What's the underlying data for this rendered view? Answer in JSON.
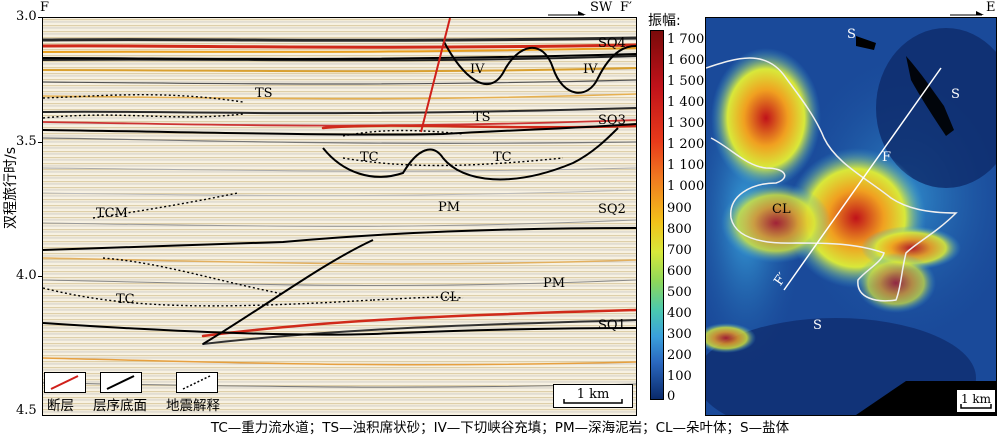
{
  "left_panel": {
    "corner_left": "F",
    "corner_right": "F′",
    "direction": "SW",
    "y_axis_label": "双程旅行时/s",
    "y_ticks": [
      "3.0",
      "3.5",
      "4.0",
      "4.5"
    ],
    "labels": {
      "sq4": "SQ4",
      "sq3": "SQ3",
      "sq2": "SQ2",
      "sq1": "SQ1",
      "iv1": "IV",
      "iv2": "IV",
      "ts1": "TS",
      "ts2": "TS",
      "tc1": "TC",
      "tc2": "TC",
      "tc3": "TC",
      "tcm": "TCM",
      "pm1": "PM",
      "pm2": "PM",
      "cl": "CL"
    },
    "legend": {
      "fault": "断层",
      "sequence_base": "层序底面",
      "seismic_interp": "地震解释"
    },
    "scale_bar": "1 km"
  },
  "colorbar": {
    "title": "振幅:",
    "ticks": [
      "1 700",
      "1 600",
      "1 500",
      "1 400",
      "1 300",
      "1 200",
      "1 100",
      "1 000",
      "900",
      "800",
      "700",
      "600",
      "500",
      "400",
      "300",
      "200",
      "100",
      "0"
    ]
  },
  "right_panel": {
    "direction": "E",
    "labels": {
      "s1": "S",
      "s2": "S",
      "s3": "S",
      "cl": "CL",
      "f1": "F",
      "f2": "F′"
    },
    "scale_bar": "1 km"
  },
  "caption": "TC—重力流水道；TS—浊积席状砂；IV—下切峡谷充填；PM—深海泥岩；CL—朵叶体；S—盐体"
}
